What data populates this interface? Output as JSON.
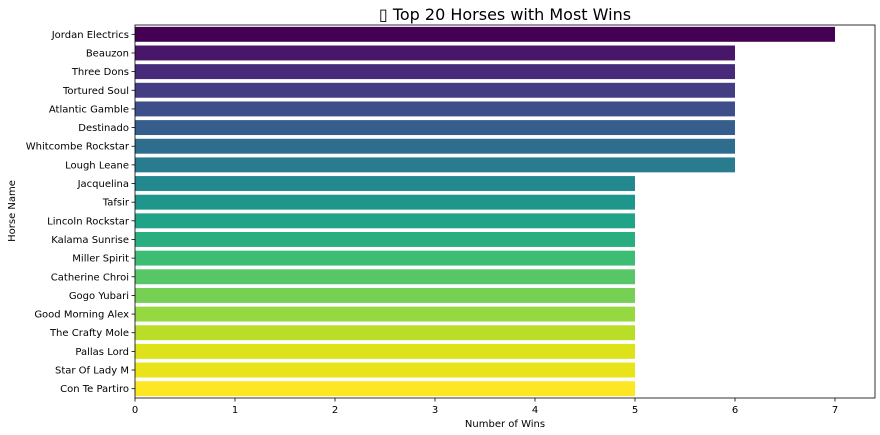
{
  "chart_data": {
    "type": "bar",
    "orientation": "horizontal",
    "title": "▯ Top 20 Horses with Most Wins",
    "xlabel": "Number of Wins",
    "ylabel": "Horse Name",
    "xlim": [
      0,
      7.4
    ],
    "xticks": [
      0,
      1,
      2,
      3,
      4,
      5,
      6,
      7
    ],
    "grid": false,
    "legend": "none",
    "categories": [
      "Jordan Electrics",
      "Beauzon",
      "Three Dons",
      "Tortured Soul",
      "Atlantic Gamble",
      "Destinado",
      "Whitcombe Rockstar",
      "Lough Leane",
      "Jacquelina",
      "Tafsir",
      "Lincoln Rockstar",
      "Kalama Sunrise",
      "Miller Spirit",
      "Catherine Chroi",
      "Gogo Yubari",
      "Good Morning Alex",
      "The Crafty Mole",
      "Pallas Lord",
      "Star Of Lady M",
      "Con Te Partiro"
    ],
    "values": [
      7,
      6,
      6,
      6,
      6,
      6,
      6,
      6,
      5,
      5,
      5,
      5,
      5,
      5,
      5,
      5,
      5,
      5,
      5,
      5
    ],
    "colors": [
      "#440154",
      "#481769",
      "#472a7a",
      "#433d84",
      "#3d4e8a",
      "#355e8d",
      "#2e6d8e",
      "#297b8e",
      "#23898e",
      "#1f968b",
      "#20a386",
      "#29af7f",
      "#3dbc74",
      "#56c667",
      "#75d054",
      "#95d840",
      "#bade28",
      "#dde318",
      "#e8e419",
      "#fde725"
    ]
  }
}
